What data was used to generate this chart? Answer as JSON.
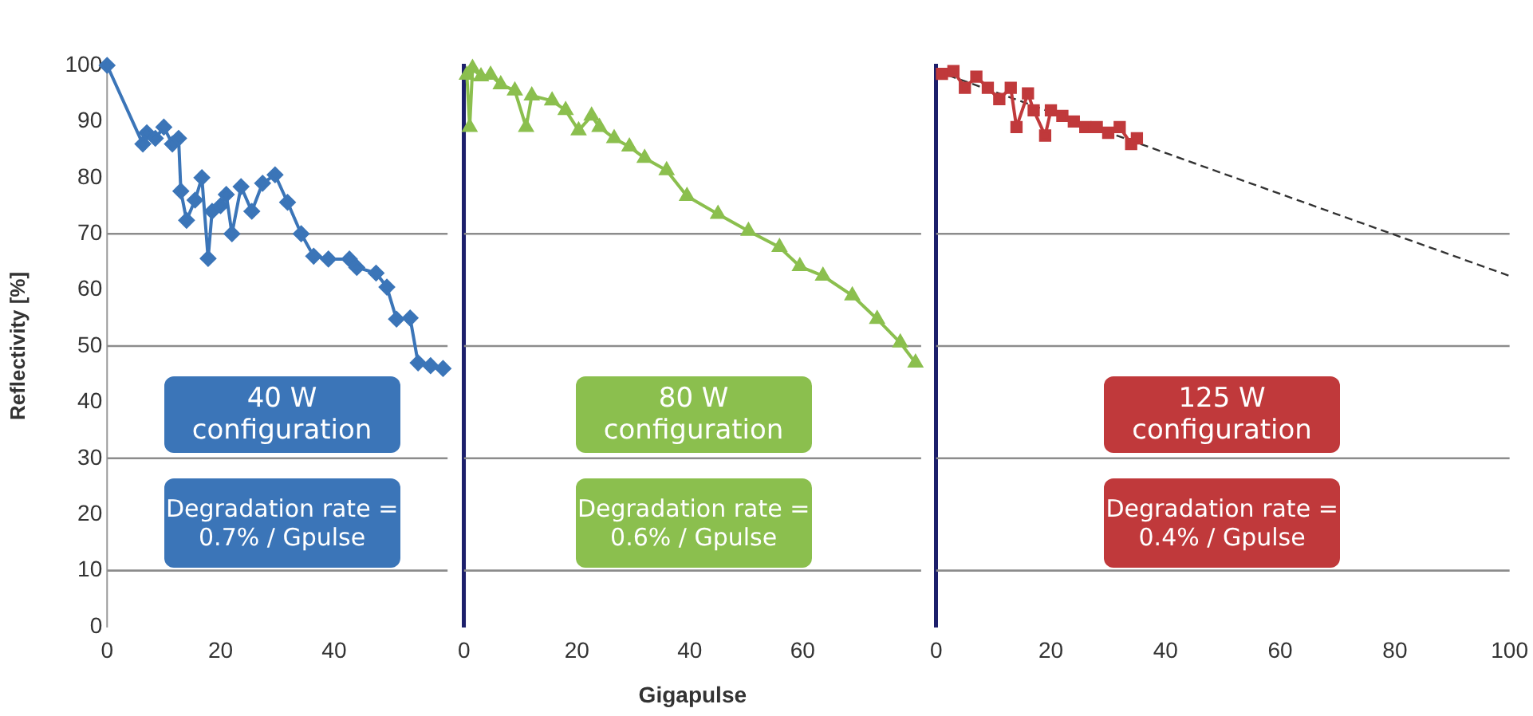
{
  "chart_data": [
    {
      "type": "line",
      "ylabel": "Reflectivity [%]",
      "xlim": [
        0,
        60
      ],
      "xticks": [
        0,
        20,
        40
      ],
      "ylim": [
        0,
        100
      ],
      "yticks": [
        0,
        10,
        20,
        30,
        40,
        50,
        60,
        70,
        80,
        90,
        100
      ],
      "grid": false,
      "legend": false,
      "marker": "diamond",
      "annotations": [
        "40 W configuration",
        "Degradation rate = 0.7% / Gpulse"
      ],
      "ref_lines": [
        {
          "axis": "y",
          "value": 10,
          "color": "#8c8c8c"
        },
        {
          "axis": "y",
          "value": 30,
          "color": "#8c8c8c"
        },
        {
          "axis": "y",
          "value": 50,
          "color": "#8c8c8c"
        },
        {
          "axis": "y",
          "value": 70,
          "color": "#8c8c8c"
        }
      ],
      "series": [
        {
          "color": "#3b75b8",
          "x": [
            0,
            6.3,
            7,
            8.5,
            10,
            11.5,
            12.6,
            13,
            14,
            15.5,
            16.7,
            17.8,
            18.5,
            20,
            21,
            22,
            23.6,
            25.5,
            27.4,
            29.6,
            31.8,
            34.2,
            36.4,
            39,
            42.7,
            44,
            47.4,
            49.3,
            51,
            53.4,
            54.8,
            57,
            59.2
          ],
          "values": [
            100,
            86,
            88,
            87,
            89,
            86,
            87,
            77.6,
            72.4,
            76,
            80,
            65.6,
            74,
            75,
            77,
            70,
            78.4,
            74,
            79,
            80.5,
            75.6,
            70,
            66,
            65.5,
            65.5,
            64,
            63,
            60.5,
            54.8,
            55,
            47,
            46.5,
            46
          ]
        }
      ]
    },
    {
      "type": "line",
      "xlabel": "Gigapulse",
      "xlim": [
        0,
        81
      ],
      "xticks": [
        0,
        20,
        40,
        60
      ],
      "ylim": [
        0,
        100
      ],
      "tick_labels": "x",
      "grid": false,
      "legend": false,
      "marker": "triangle",
      "annotations": [
        "80 W configuration",
        "Degradation rate = 0.6% / Gpulse"
      ],
      "ref_lines": [
        {
          "axis": "y",
          "value": 10,
          "color": "#8c8c8c"
        },
        {
          "axis": "y",
          "value": 30,
          "color": "#8c8c8c"
        },
        {
          "axis": "y",
          "value": 50,
          "color": "#8c8c8c"
        },
        {
          "axis": "y",
          "value": 70,
          "color": "#8c8c8c"
        }
      ],
      "series": [
        {
          "color": "#8bbf4e",
          "x": [
            0.5,
            1,
            1.5,
            3,
            4.7,
            6.5,
            9,
            11,
            12,
            15.6,
            18,
            20.3,
            22.6,
            24,
            26.6,
            29.3,
            32,
            35.9,
            39.5,
            45,
            50.4,
            55.9,
            59.5,
            63.6,
            68.8,
            73.2,
            77.3,
            80
          ],
          "values": [
            98.3,
            89,
            99.5,
            98,
            98.3,
            96.6,
            95.5,
            89,
            94.6,
            93.7,
            92,
            88.4,
            91,
            89,
            87,
            85.5,
            83.5,
            81.3,
            76.7,
            73.5,
            70.5,
            67.6,
            64.2,
            62.5,
            59,
            54.8,
            50.6,
            47
          ]
        }
      ]
    },
    {
      "type": "line",
      "xlim": [
        0,
        100
      ],
      "xticks": [
        0,
        20,
        40,
        60,
        80,
        100
      ],
      "ylim": [
        0,
        100
      ],
      "tick_labels": "x",
      "grid": false,
      "legend": false,
      "marker": "square",
      "annotations": [
        "125 W configuration",
        "Degradation rate = 0.4% / Gpulse"
      ],
      "ref_lines": [
        {
          "axis": "y",
          "value": 10,
          "color": "#8c8c8c"
        },
        {
          "axis": "y",
          "value": 30,
          "color": "#8c8c8c"
        },
        {
          "axis": "y",
          "value": 50,
          "color": "#8c8c8c"
        },
        {
          "axis": "y",
          "value": 70,
          "color": "#8c8c8c"
        }
      ],
      "series": [
        {
          "color": "#c0393b",
          "x": [
            1,
            3,
            5,
            7,
            9,
            11,
            13,
            14,
            16,
            17,
            19,
            20,
            22,
            24,
            26,
            28,
            30,
            32,
            34,
            35
          ],
          "values": [
            98.5,
            99,
            96,
            98,
            96,
            94,
            96,
            89,
            95,
            92,
            87.5,
            92,
            91,
            90,
            89,
            89,
            88,
            89,
            86,
            87
          ]
        },
        {
          "color": "#333333",
          "line_style": "dashed",
          "marker": "none",
          "x": [
            0,
            100
          ],
          "values": [
            99,
            62.5
          ]
        }
      ]
    }
  ]
}
